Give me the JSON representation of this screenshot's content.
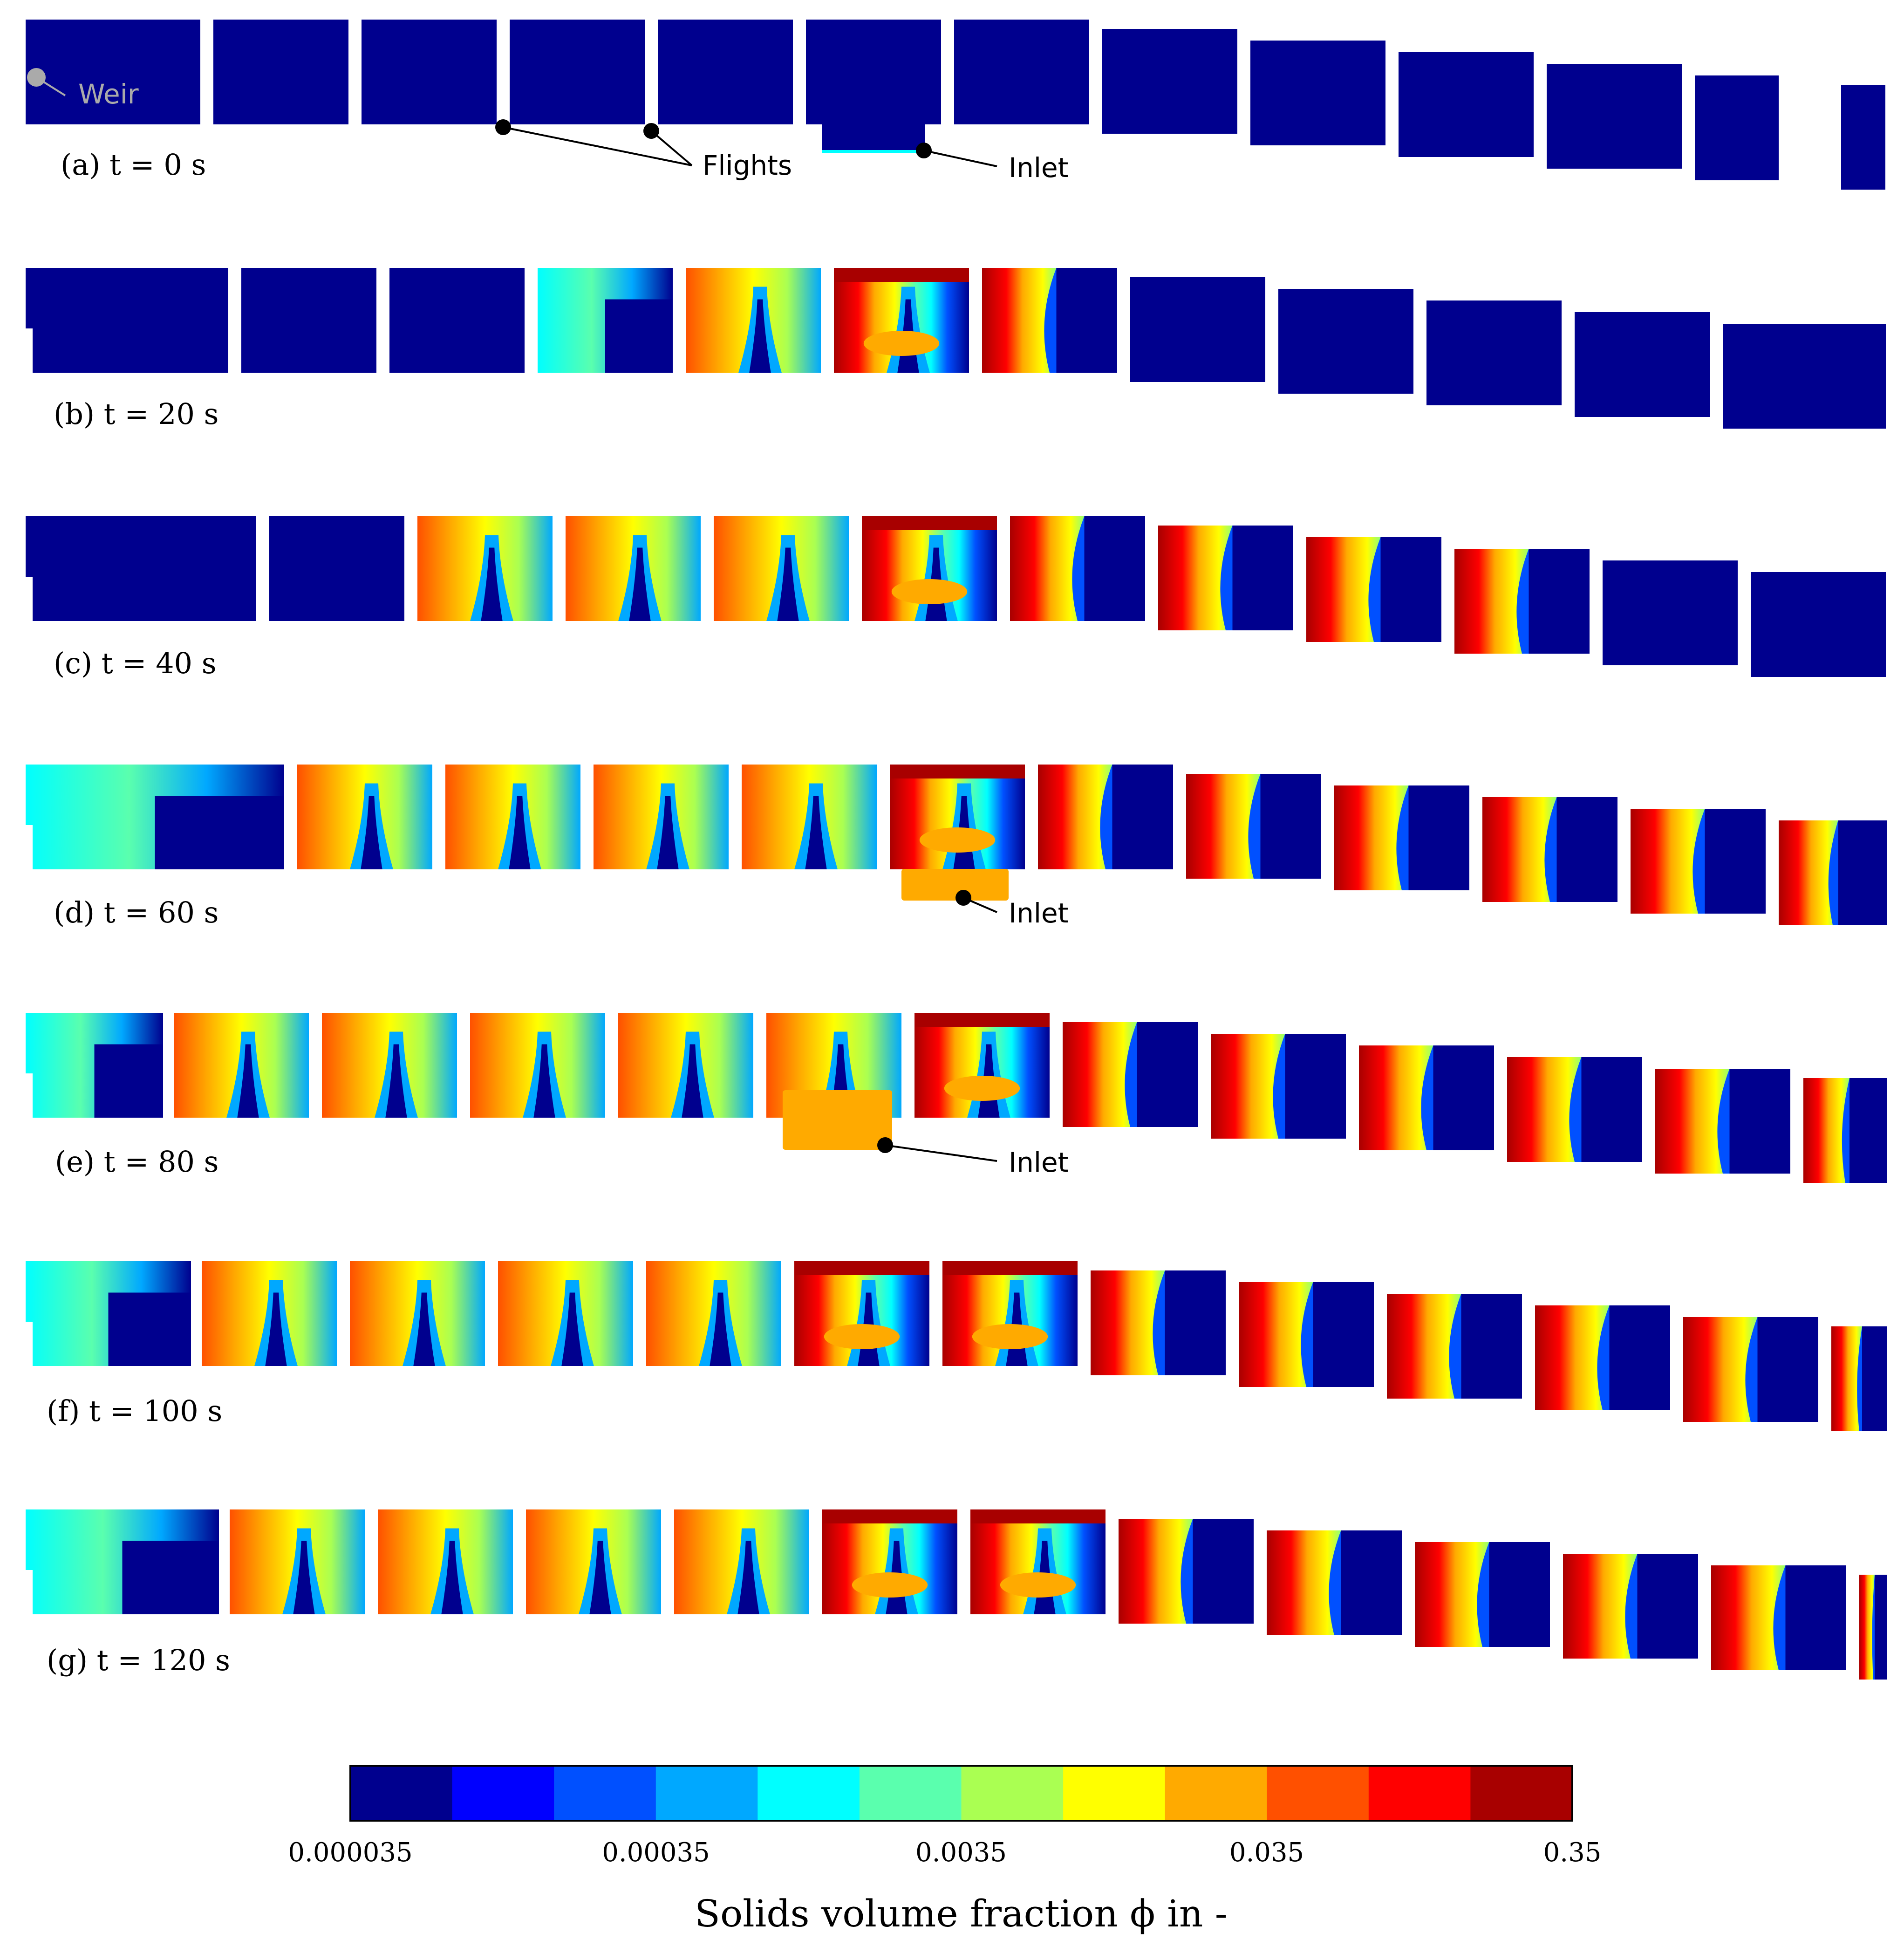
{
  "figure": {
    "panels": [
      {
        "label": "(a) t = 0 s",
        "id": "a"
      },
      {
        "label": "(b) t = 20 s",
        "id": "b"
      },
      {
        "label": "(c) t = 40 s",
        "id": "c"
      },
      {
        "label": "(d) t = 60 s",
        "id": "d"
      },
      {
        "label": "(e) t = 80 s",
        "id": "e"
      },
      {
        "label": "(f) t = 100 s",
        "id": "f"
      },
      {
        "label": "(g) t = 120 s",
        "id": "g"
      }
    ],
    "annotations": {
      "weir": "Weir",
      "flights": "Flights",
      "inlet": "Inlet"
    },
    "colorbar": {
      "title": "Solids volume fraction ϕ in -",
      "ticks": [
        "0.000035",
        "0.00035",
        "0.0035",
        "0.035",
        "0.35"
      ],
      "colors": [
        "#00008e",
        "#0000ff",
        "#0050ff",
        "#00a8ff",
        "#00ffff",
        "#5affae",
        "#aaff52",
        "#ffff00",
        "#ffaa00",
        "#ff5000",
        "#ff0000",
        "#a80000"
      ]
    }
  }
}
